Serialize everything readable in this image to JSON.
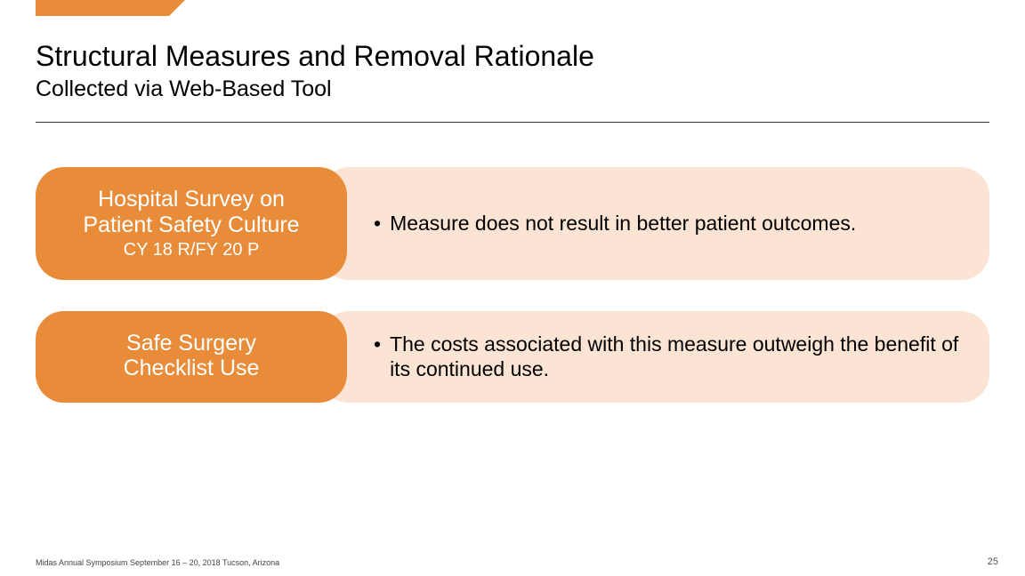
{
  "colors": {
    "accent_orange": "#e88c3a",
    "pill_light": "#fbe4d3",
    "text_dark": "#000000",
    "footer_text": "#444444"
  },
  "header": {
    "title": "Structural Measures and Removal Rationale",
    "subtitle": "Collected via Web-Based Tool"
  },
  "rows": [
    {
      "pill_title_line1": "Hospital Survey on",
      "pill_title_line2": "Patient Safety Culture",
      "pill_sub": "CY 18 R/FY 20 P",
      "bullet": "Measure does not result in better patient outcomes."
    },
    {
      "pill_title_line1": "Safe Surgery",
      "pill_title_line2": "Checklist Use",
      "pill_sub": "",
      "bullet": "The costs associated with this measure outweigh the benefit of its continued use."
    }
  ],
  "footer": {
    "left": "Midas Annual Symposium  September 16 – 20, 2018  Tucson, Arizona",
    "page_number": "25"
  }
}
